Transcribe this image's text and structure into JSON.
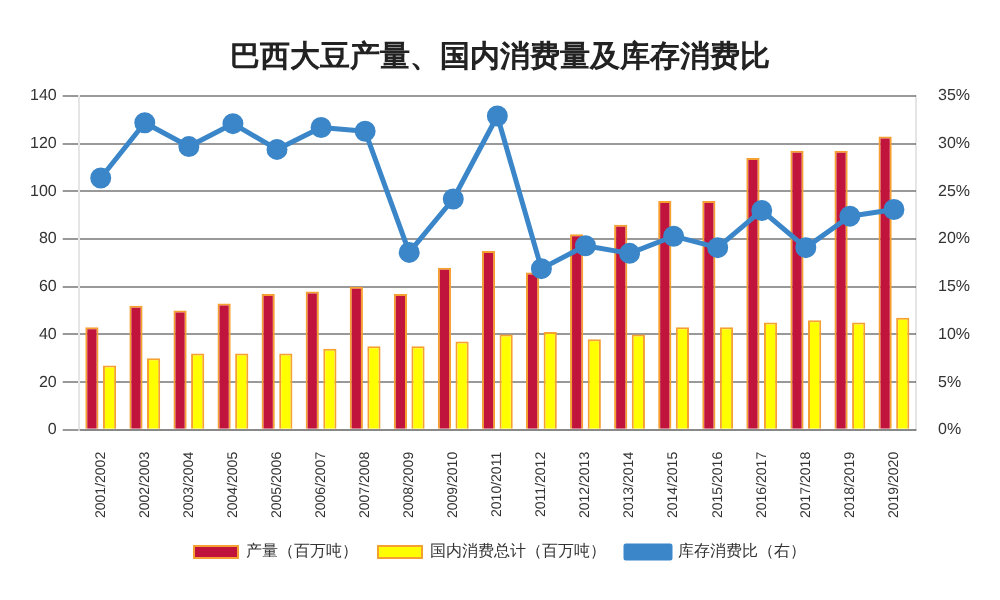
{
  "chart_data": {
    "type": "bar",
    "title": "巴西大豆产量、国内消费量及库存消费比",
    "categories": [
      "2001/2002",
      "2002/2003",
      "2003/2004",
      "2004/2005",
      "2005/2006",
      "2006/2007",
      "2007/2008",
      "2008/2009",
      "2009/2010",
      "2010/2011",
      "2011/2012",
      "2012/2013",
      "2013/2014",
      "2014/2015",
      "2015/2016",
      "2016/2017",
      "2017/2018",
      "2018/2019",
      "2019/2020"
    ],
    "series": [
      {
        "name": "产量（百万吨）",
        "color": "#c0143c",
        "values": [
          43,
          52,
          50,
          53,
          57,
          58,
          60,
          57,
          68,
          75,
          66,
          82,
          86,
          96,
          96,
          114,
          117,
          117,
          123
        ]
      },
      {
        "name": "国内消费总计（百万吨）",
        "color": "#ffff00",
        "values": [
          27,
          30,
          32,
          32,
          32,
          34,
          35,
          35,
          37,
          40,
          41,
          38,
          40,
          43,
          43,
          45,
          46,
          45,
          47
        ]
      },
      {
        "name": "库存消费比（右）",
        "type": "line",
        "axis": "y2",
        "color": "#3a86c8",
        "marker": "circle",
        "values": [
          26.4,
          32.2,
          29.7,
          32.1,
          29.4,
          31.7,
          31.3,
          18.6,
          24.2,
          32.9,
          16.9,
          19.3,
          18.5,
          20.3,
          19.1,
          23,
          19.1,
          22.4,
          23.1
        ]
      }
    ],
    "ylim": [
      0,
      140
    ],
    "yticks": [
      0,
      20,
      40,
      60,
      80,
      100,
      120,
      140
    ],
    "y2lim": [
      0,
      35
    ],
    "y2ticks": [
      {
        "value": 0,
        "label": "0%"
      },
      {
        "value": 5,
        "label": "5%"
      },
      {
        "value": 10,
        "label": "10%"
      },
      {
        "value": 15,
        "label": "15%"
      },
      {
        "value": 20,
        "label": "20%"
      },
      {
        "value": 25,
        "label": "25%"
      },
      {
        "value": 30,
        "label": "30%"
      },
      {
        "value": 35,
        "label": "35%"
      }
    ],
    "grid": "y",
    "legend": "bottom"
  }
}
